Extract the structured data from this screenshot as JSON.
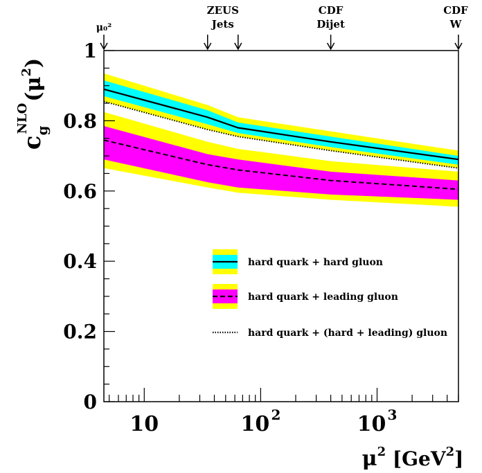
{
  "chart_data": {
    "type": "line",
    "xscale": "log",
    "xlim": [
      4.5,
      5000
    ],
    "ylim": [
      0,
      1
    ],
    "ylabel": "c_g^NLO(μ²)",
    "xlabel": "μ² [GeV²]",
    "ytick_labels": [
      "0",
      "0.2",
      "0.4",
      "0.6",
      "0.8",
      "1"
    ],
    "ytick_values": [
      0,
      0.2,
      0.4,
      0.6,
      0.8,
      1.0
    ],
    "xtick_major": [
      {
        "value": 10,
        "label": "10",
        "sup": ""
      },
      {
        "value": 100,
        "label": "10",
        "sup": "2"
      },
      {
        "value": 1000,
        "label": "10",
        "sup": "3"
      }
    ],
    "scale_markers": [
      {
        "value": 4.5,
        "line1": "μ₀²",
        "line2": ""
      },
      {
        "value": 35,
        "line1": "ZEUS",
        "line2": "Jets",
        "group": "zeus"
      },
      {
        "value": 64,
        "line1": "",
        "line2": "",
        "group": "zeus"
      },
      {
        "value": 400,
        "line1": "CDF",
        "line2": "Dijet"
      },
      {
        "value": 5000,
        "line1": "CDF",
        "line2": "W"
      }
    ],
    "x": [
      4.5,
      35,
      64,
      400,
      5000
    ],
    "series": [
      {
        "name": "hard quark + hard gluon",
        "style": "solid",
        "values": [
          0.89,
          0.81,
          0.78,
          0.74,
          0.69
        ],
        "inner_band": {
          "low": [
            0.87,
            0.79,
            0.765,
            0.725,
            0.675
          ],
          "high": [
            0.915,
            0.83,
            0.795,
            0.755,
            0.7
          ],
          "color": "#00ffff"
        },
        "outer_band": {
          "low": [
            0.855,
            0.775,
            0.755,
            0.715,
            0.665
          ],
          "high": [
            0.935,
            0.845,
            0.81,
            0.77,
            0.715
          ],
          "color": "#ffff00"
        }
      },
      {
        "name": "hard quark + leading gluon",
        "style": "dashed",
        "values": [
          0.745,
          0.675,
          0.66,
          0.63,
          0.605
        ],
        "inner_band": {
          "low": [
            0.69,
            0.625,
            0.61,
            0.59,
            0.575
          ],
          "high": [
            0.785,
            0.705,
            0.69,
            0.655,
            0.63
          ],
          "color": "#ff00ff"
        },
        "outer_band": {
          "low": [
            0.665,
            0.61,
            0.595,
            0.575,
            0.555
          ],
          "high": [
            0.825,
            0.74,
            0.72,
            0.685,
            0.655
          ],
          "color": "#ffff00"
        }
      },
      {
        "name": "hard quark + (hard + leading) gluon",
        "style": "dotted",
        "values": [
          0.855,
          0.775,
          0.755,
          0.715,
          0.665
        ]
      }
    ],
    "colors": {
      "axis": "#000000",
      "yellow": "#ffff00",
      "cyan": "#00ffff",
      "magenta": "#ff00ff"
    }
  }
}
